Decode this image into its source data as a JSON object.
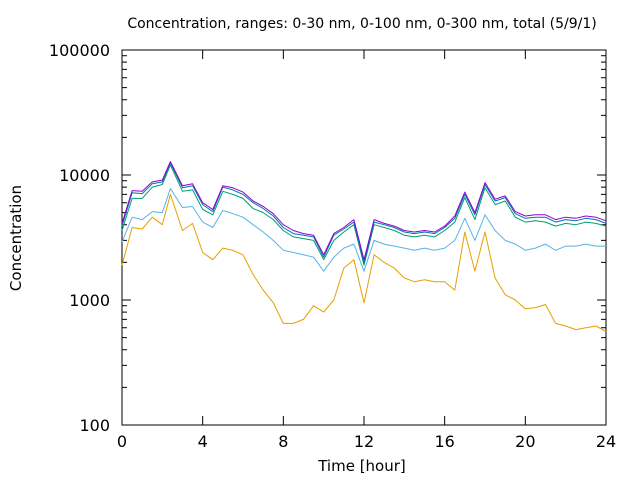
{
  "chart_data": {
    "type": "line",
    "title": "Concentration, ranges: 0-30 nm, 0-100 nm, 0-300 nm, total (5/9/1)",
    "xlabel": "Time [hour]",
    "ylabel": "Concentration",
    "xlim": [
      0,
      24
    ],
    "ylim": [
      100,
      100000
    ],
    "yscale": "log",
    "grid": false,
    "legend": "none",
    "x_ticks": [
      0,
      4,
      8,
      12,
      16,
      20,
      24
    ],
    "x_tick_labels": [
      "0",
      "4",
      "8",
      "12",
      "16",
      "20",
      "24"
    ],
    "y_ticks": [
      100,
      1000,
      10000,
      100000
    ],
    "y_tick_labels": [
      "100",
      "1000",
      "10000",
      "100000"
    ],
    "x": [
      0,
      0.5,
      1,
      1.5,
      2,
      2.4,
      3,
      3.5,
      4,
      4.5,
      5,
      5.5,
      6,
      6.5,
      7,
      7.5,
      8,
      8.5,
      9,
      9.5,
      10,
      10.5,
      11,
      11.5,
      12,
      12.5,
      13,
      13.5,
      14,
      14.5,
      15,
      15.5,
      16,
      16.5,
      17,
      17.5,
      18,
      18.5,
      19,
      19.5,
      20,
      20.5,
      21,
      21.5,
      22,
      22.5,
      23,
      23.5,
      24
    ],
    "series": [
      {
        "color": "#e69f00",
        "values": [
          1900,
          3800,
          3700,
          4600,
          4000,
          7000,
          3600,
          4100,
          2400,
          2100,
          2600,
          2500,
          2300,
          1600,
          1200,
          950,
          650,
          650,
          700,
          900,
          800,
          1000,
          1800,
          2100,
          950,
          2300,
          2000,
          1800,
          1500,
          1400,
          1450,
          1400,
          1400,
          1200,
          3500,
          1700,
          3500,
          1500,
          1100,
          1000,
          850,
          870,
          920,
          650,
          620,
          580,
          600,
          620,
          560
        ]
      },
      {
        "color": "#56b4e9",
        "values": [
          2900,
          4600,
          4400,
          5100,
          5000,
          7800,
          5500,
          5600,
          4200,
          3800,
          5200,
          4900,
          4600,
          4000,
          3500,
          3000,
          2500,
          2400,
          2300,
          2200,
          1700,
          2200,
          2600,
          2800,
          1700,
          3000,
          2800,
          2700,
          2600,
          2500,
          2600,
          2500,
          2600,
          3000,
          4500,
          3000,
          4800,
          3600,
          3000,
          2800,
          2500,
          2600,
          2800,
          2500,
          2700,
          2700,
          2800,
          2700,
          2700
        ]
      },
      {
        "color": "#009e73",
        "values": [
          3600,
          6500,
          6500,
          8000,
          8400,
          12000,
          7400,
          7600,
          5300,
          4800,
          7400,
          7000,
          6500,
          5400,
          5000,
          4400,
          3600,
          3200,
          3100,
          3000,
          2100,
          3000,
          3500,
          4000,
          1900,
          4000,
          3800,
          3600,
          3300,
          3200,
          3300,
          3200,
          3600,
          4200,
          6600,
          4400,
          7900,
          5800,
          6200,
          4600,
          4200,
          4300,
          4200,
          3900,
          4100,
          4000,
          4200,
          4100,
          3900
        ]
      },
      {
        "color": "#0072b2",
        "values": [
          3900,
          7200,
          7100,
          8500,
          8800,
          12500,
          7900,
          8200,
          5800,
          5100,
          8000,
          7600,
          7000,
          6000,
          5400,
          4700,
          3800,
          3400,
          3300,
          3200,
          2200,
          3300,
          3700,
          4200,
          2000,
          4200,
          4000,
          3800,
          3500,
          3400,
          3500,
          3400,
          3800,
          4500,
          7000,
          4800,
          8400,
          6200,
          6600,
          4900,
          4500,
          4600,
          4600,
          4200,
          4400,
          4300,
          4500,
          4400,
          4100
        ]
      },
      {
        "color": "#9400d3",
        "values": [
          4100,
          7500,
          7400,
          8800,
          9100,
          12800,
          8200,
          8500,
          6000,
          5300,
          8200,
          7900,
          7300,
          6200,
          5600,
          4900,
          4000,
          3600,
          3400,
          3300,
          2300,
          3400,
          3800,
          4400,
          2100,
          4400,
          4100,
          3900,
          3600,
          3500,
          3600,
          3500,
          3900,
          4700,
          7300,
          5000,
          8700,
          6400,
          6800,
          5100,
          4700,
          4800,
          4800,
          4400,
          4600,
          4500,
          4700,
          4600,
          4300
        ]
      }
    ]
  }
}
